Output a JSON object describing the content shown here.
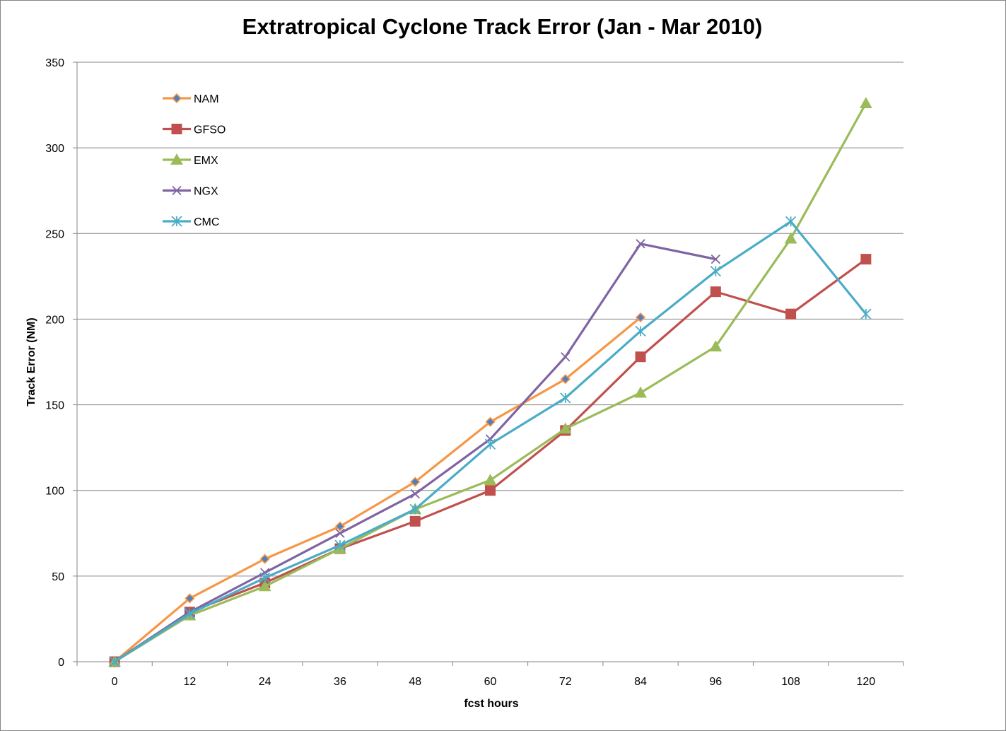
{
  "chart_data": {
    "type": "line",
    "title": "Extratropical Cyclone Track Error (Jan - Mar 2010)",
    "xlabel": "fcst hours",
    "ylabel": "Track Error  (NM)",
    "categories": [
      "0",
      "12",
      "24",
      "36",
      "48",
      "60",
      "72",
      "84",
      "96",
      "108",
      "120"
    ],
    "ylim": [
      0,
      350
    ],
    "yticks": [
      0,
      50,
      100,
      150,
      200,
      250,
      300,
      350
    ],
    "grid": "horizontal",
    "legend_position": "top-left inside plot",
    "series": [
      {
        "name": "NAM",
        "color": "#F79646",
        "marker": "diamond",
        "marker_fill": "#4F81BD",
        "values": [
          0,
          37,
          60,
          79,
          105,
          140,
          165,
          201,
          null,
          null,
          null
        ]
      },
      {
        "name": "GFSO",
        "color": "#C0504D",
        "marker": "square",
        "marker_fill": "#C0504D",
        "values": [
          0,
          29,
          46,
          66,
          82,
          100,
          135,
          178,
          216,
          203,
          235
        ]
      },
      {
        "name": "EMX",
        "color": "#9BBB59",
        "marker": "triangle",
        "marker_fill": "#9BBB59",
        "values": [
          0,
          27,
          44,
          66,
          89,
          106,
          136,
          157,
          184,
          247,
          326
        ]
      },
      {
        "name": "NGX",
        "color": "#8064A2",
        "marker": "x",
        "marker_fill": "#8064A2",
        "values": [
          0,
          29,
          52,
          75,
          98,
          130,
          178,
          244,
          235,
          null,
          null
        ]
      },
      {
        "name": "CMC",
        "color": "#4BACC6",
        "marker": "star",
        "marker_fill": "#4BACC6",
        "values": [
          0,
          28,
          49,
          68,
          89,
          127,
          154,
          193,
          228,
          257,
          203
        ]
      }
    ]
  }
}
